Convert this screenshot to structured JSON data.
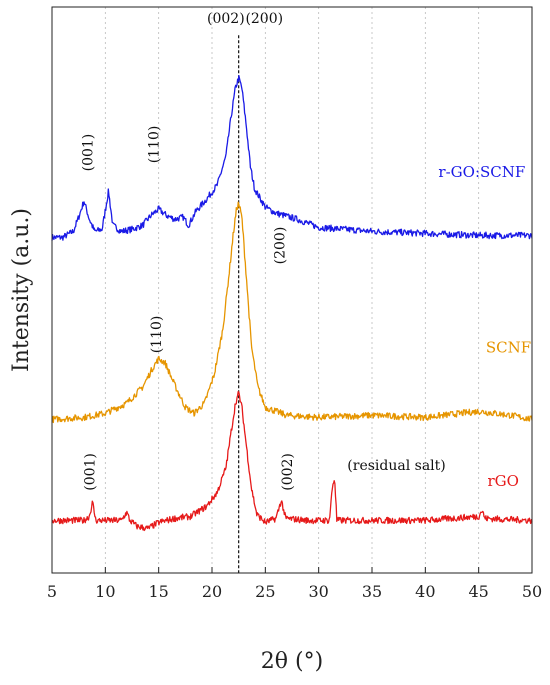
{
  "chart_data": {
    "type": "line",
    "title": "",
    "xlabel": "2θ (°)",
    "ylabel": "Intensity (a.u.)",
    "xlim": [
      5,
      50
    ],
    "x_ticks": [
      "5",
      "10",
      "15",
      "20",
      "25",
      "30",
      "35",
      "40",
      "45",
      "50"
    ],
    "grid": "vertical dotted",
    "reference_line_x": 22.5,
    "series": [
      {
        "name": "r-GO:SCNF",
        "color": "#1a1ae6",
        "points": [
          [
            5,
            8.3
          ],
          [
            6,
            8.3
          ],
          [
            7,
            8.45
          ],
          [
            7.5,
            8.8
          ],
          [
            8,
            9.2
          ],
          [
            8.5,
            8.75
          ],
          [
            9,
            8.45
          ],
          [
            9.7,
            8.5
          ],
          [
            10.3,
            9.45
          ],
          [
            10.7,
            8.6
          ],
          [
            11.5,
            8.45
          ],
          [
            12.5,
            8.5
          ],
          [
            13.5,
            8.6
          ],
          [
            14.3,
            8.85
          ],
          [
            15,
            9.0
          ],
          [
            15.7,
            8.85
          ],
          [
            16.5,
            8.75
          ],
          [
            17.3,
            8.8
          ],
          [
            17.8,
            8.6
          ],
          [
            18.5,
            8.95
          ],
          [
            19.5,
            9.25
          ],
          [
            20.5,
            9.6
          ],
          [
            21.3,
            10.3
          ],
          [
            21.8,
            11.3
          ],
          [
            22.2,
            12.0
          ],
          [
            22.5,
            12.25
          ],
          [
            22.8,
            12.0
          ],
          [
            23.2,
            11.1
          ],
          [
            23.6,
            10.05
          ],
          [
            24,
            9.5
          ],
          [
            25,
            9.05
          ],
          [
            26,
            8.9
          ],
          [
            28,
            8.75
          ],
          [
            30,
            8.55
          ],
          [
            35,
            8.45
          ],
          [
            40,
            8.4
          ],
          [
            45,
            8.35
          ],
          [
            50,
            8.35
          ]
        ]
      },
      {
        "name": "SCNF",
        "color": "#e69500",
        "points": [
          [
            5,
            3.8
          ],
          [
            8,
            3.85
          ],
          [
            10,
            3.95
          ],
          [
            12,
            4.2
          ],
          [
            13.5,
            4.6
          ],
          [
            14.5,
            5.1
          ],
          [
            15,
            5.3
          ],
          [
            15.6,
            5.2
          ],
          [
            16.5,
            4.65
          ],
          [
            17.5,
            4.1
          ],
          [
            18.3,
            3.95
          ],
          [
            19.3,
            4.2
          ],
          [
            20.2,
            4.9
          ],
          [
            21,
            6.0
          ],
          [
            21.6,
            7.4
          ],
          [
            22,
            8.4
          ],
          [
            22.3,
            9.0
          ],
          [
            22.5,
            9.15
          ],
          [
            22.8,
            8.8
          ],
          [
            23.2,
            7.4
          ],
          [
            23.7,
            5.6
          ],
          [
            24.3,
            4.6
          ],
          [
            25,
            4.1
          ],
          [
            27,
            3.9
          ],
          [
            30,
            3.85
          ],
          [
            35,
            3.9
          ],
          [
            40,
            3.85
          ],
          [
            45,
            4.0
          ],
          [
            48,
            3.9
          ],
          [
            50,
            3.8
          ]
        ]
      },
      {
        "name": "rGO",
        "color": "#e61a1a",
        "points": [
          [
            5,
            1.3
          ],
          [
            8,
            1.3
          ],
          [
            8.5,
            1.4
          ],
          [
            8.8,
            1.75
          ],
          [
            9.1,
            1.3
          ],
          [
            11.5,
            1.3
          ],
          [
            12,
            1.5
          ],
          [
            12.3,
            1.3
          ],
          [
            13,
            1.15
          ],
          [
            14,
            1.1
          ],
          [
            15,
            1.25
          ],
          [
            16.5,
            1.35
          ],
          [
            18,
            1.4
          ],
          [
            19.5,
            1.65
          ],
          [
            20.5,
            2.0
          ],
          [
            21.3,
            2.6
          ],
          [
            21.8,
            3.5
          ],
          [
            22.2,
            4.2
          ],
          [
            22.5,
            4.45
          ],
          [
            22.8,
            4.1
          ],
          [
            23.2,
            3.2
          ],
          [
            23.7,
            2.1
          ],
          [
            24.2,
            1.45
          ],
          [
            25,
            1.25
          ],
          [
            26,
            1.35
          ],
          [
            26.5,
            1.8
          ],
          [
            26.9,
            1.35
          ],
          [
            29,
            1.3
          ],
          [
            31,
            1.3
          ],
          [
            31.3,
            2.15
          ],
          [
            31.5,
            2.35
          ],
          [
            31.7,
            1.3
          ],
          [
            35,
            1.3
          ],
          [
            40,
            1.3
          ],
          [
            45,
            1.4
          ],
          [
            45.3,
            1.55
          ],
          [
            45.6,
            1.35
          ],
          [
            50,
            1.3
          ]
        ]
      }
    ],
    "annotations": [
      {
        "text": "(001)",
        "x": 8.8,
        "y": 10.4,
        "rotate": true
      },
      {
        "text": "(110)",
        "x": 15.0,
        "y": 10.6,
        "rotate": true
      },
      {
        "text": "(002)",
        "x": 21.3,
        "y": 13.6,
        "rotate": false
      },
      {
        "text": "(200)",
        "x": 24.9,
        "y": 13.6,
        "rotate": false
      },
      {
        "text": "(200)",
        "x": 26.8,
        "y": 8.1,
        "rotate": true
      },
      {
        "text": "(110)",
        "x": 15.2,
        "y": 5.9,
        "rotate": true
      },
      {
        "text": "(001)",
        "x": 9.0,
        "y": 2.5,
        "rotate": true
      },
      {
        "text": "(002)",
        "x": 27.5,
        "y": 2.5,
        "rotate": true
      },
      {
        "text": "(residual salt)",
        "x": 37.3,
        "y": 2.55,
        "rotate": false
      }
    ],
    "series_labels": [
      {
        "text": "r-GO:SCNF",
        "x": 45.3,
        "y": 9.8,
        "color": "#1a1ae6"
      },
      {
        "text": "SCNF",
        "x": 47.8,
        "y": 5.45,
        "color": "#e69500"
      },
      {
        "text": "rGO",
        "x": 47.3,
        "y": 2.15,
        "color": "#e61a1a"
      }
    ]
  }
}
